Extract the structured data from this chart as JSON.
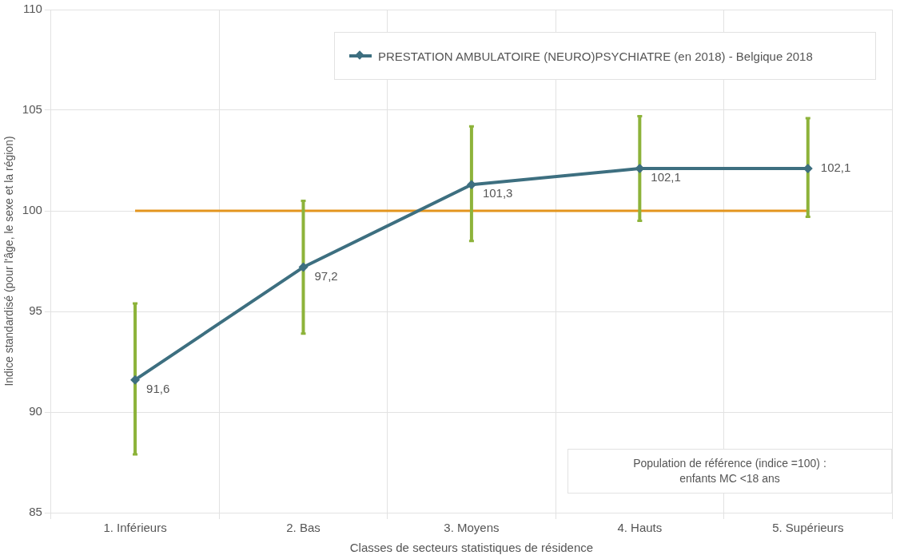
{
  "chart_data": {
    "type": "line",
    "xlabel": "Classes de secteurs statistiques de résidence",
    "ylabel": "Indice standardisé (pour l'âge, le sexe et la région)",
    "categories": [
      "1. Inférieurs",
      "2. Bas",
      "3. Moyens",
      "4. Hauts",
      "5. Supérieurs"
    ],
    "series": [
      {
        "name": "PRESTATION AMBULATOIRE (NEURO)PSYCHIATRE (en 2018) - Belgique 2018",
        "color": "#3d6f80",
        "values": [
          91.6,
          97.2,
          101.3,
          102.1,
          102.1
        ],
        "value_labels": [
          "91,6",
          "97,2",
          "101,3",
          "102,1",
          "102,1"
        ],
        "errors": [
          [
            87.9,
            95.4
          ],
          [
            93.9,
            100.5
          ],
          [
            98.5,
            104.2
          ],
          [
            99.5,
            104.7
          ],
          [
            99.7,
            104.6
          ]
        ]
      }
    ],
    "ref_lines": [
      {
        "axis": "y",
        "value": 100,
        "color": "#e3951e"
      }
    ],
    "ylim": [
      85,
      110
    ],
    "yticks": [
      85,
      90,
      95,
      100,
      105,
      110
    ],
    "grid": true,
    "legend": "top right",
    "marker": "diamond",
    "line_style": "solid",
    "annotations": [
      "Population de référence (indice =100) : enfants MC <18 ans"
    ]
  }
}
